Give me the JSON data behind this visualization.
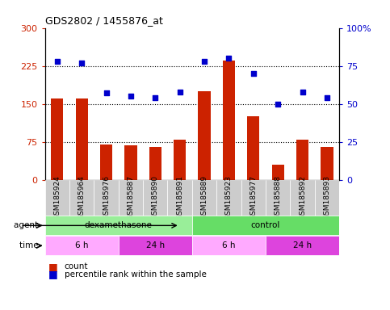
{
  "title": "GDS2802 / 1455876_at",
  "samples": [
    "GSM185924",
    "GSM185964",
    "GSM185976",
    "GSM185887",
    "GSM185890",
    "GSM185891",
    "GSM185889",
    "GSM185923",
    "GSM185977",
    "GSM185888",
    "GSM185892",
    "GSM185893"
  ],
  "counts": [
    160,
    160,
    70,
    68,
    65,
    80,
    175,
    235,
    125,
    30,
    80,
    65
  ],
  "percentiles": [
    78,
    77,
    57,
    55,
    54,
    58,
    78,
    80,
    70,
    50,
    58,
    54
  ],
  "bar_color": "#cc2200",
  "dot_color": "#0000cc",
  "left_ylim": [
    0,
    300
  ],
  "right_ylim": [
    0,
    100
  ],
  "left_yticks": [
    0,
    75,
    150,
    225,
    300
  ],
  "right_yticks": [
    0,
    25,
    50,
    75,
    100
  ],
  "right_yticklabels": [
    "0",
    "25",
    "50",
    "75",
    "100%"
  ],
  "hlines": [
    75,
    150,
    225
  ],
  "agent_groups": [
    {
      "label": "dexamethasone",
      "start": 0,
      "end": 6,
      "color": "#99ee99"
    },
    {
      "label": "control",
      "start": 6,
      "end": 12,
      "color": "#66dd66"
    }
  ],
  "time_groups": [
    {
      "label": "6 h",
      "start": 0,
      "end": 3,
      "color": "#ffaaff"
    },
    {
      "label": "24 h",
      "start": 3,
      "end": 6,
      "color": "#dd44dd"
    },
    {
      "label": "6 h",
      "start": 6,
      "end": 9,
      "color": "#ffaaff"
    },
    {
      "label": "24 h",
      "start": 9,
      "end": 12,
      "color": "#dd44dd"
    }
  ],
  "legend_count_label": "count",
  "legend_pct_label": "percentile rank within the sample",
  "agent_row_label": "agent",
  "time_row_label": "time",
  "plot_bg": "#ffffff",
  "tick_bg": "#cccccc",
  "tick_label_fontsize": 6.5,
  "bar_width": 0.5
}
